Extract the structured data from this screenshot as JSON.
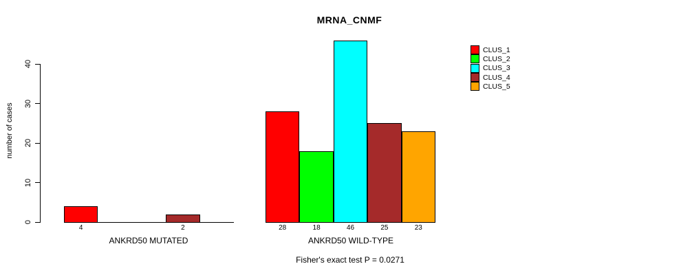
{
  "chart_data": {
    "type": "bar",
    "title": "MRNA_CNMF",
    "ylabel": "number of cases",
    "yticks": [
      0,
      10,
      20,
      30,
      40
    ],
    "axis_max": 40,
    "grid": false,
    "legend_position": "right",
    "legend": [
      {
        "label": "CLUS_1",
        "color": "#FF0000"
      },
      {
        "label": "CLUS_2",
        "color": "#00FF00"
      },
      {
        "label": "CLUS_3",
        "color": "#00FFFF"
      },
      {
        "label": "CLUS_4",
        "color": "#A52A2A"
      },
      {
        "label": "CLUS_5",
        "color": "#FFA500"
      }
    ],
    "groups": [
      {
        "label": "ANKRD50 MUTATED",
        "values": [
          4,
          0,
          0,
          2,
          0
        ]
      },
      {
        "label": "ANKRD50 WILD-TYPE",
        "values": [
          28,
          18,
          46,
          25,
          23
        ]
      }
    ],
    "footnote": "Fisher's exact test P = 0.0271"
  }
}
